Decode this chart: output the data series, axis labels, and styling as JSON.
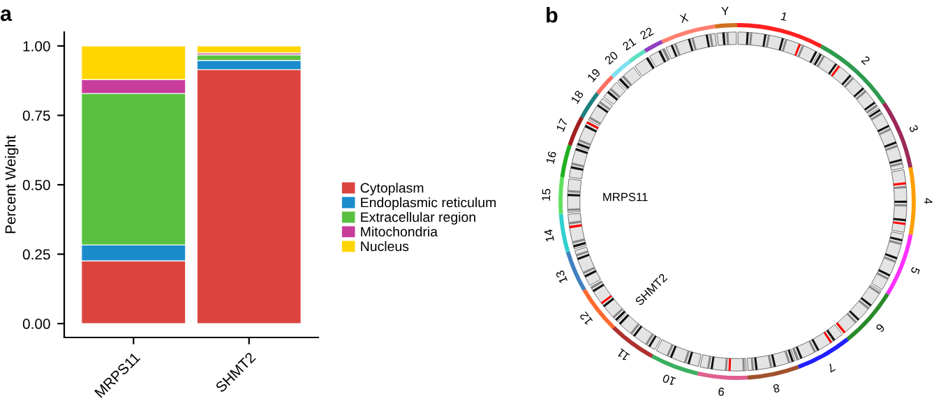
{
  "chart_data": [
    {
      "type": "bar",
      "title": "a",
      "ylabel": "Percent Weight",
      "categories": [
        "MRPS11",
        "SHMT2"
      ],
      "stacked": true,
      "legend": "right",
      "ylim": [
        -0.05,
        1.05
      ],
      "yticks": [
        {
          "value": 0,
          "label": "0.00"
        },
        {
          "value": 0.25,
          "label": "0.25"
        },
        {
          "value": 0.5,
          "label": "0.50"
        },
        {
          "value": 0.75,
          "label": "0.75"
        },
        {
          "value": 1,
          "label": "1.00"
        }
      ],
      "series": [
        {
          "name": "Cytoplasm",
          "color": "#dc4440",
          "values": [
            0.226,
            0.915
          ]
        },
        {
          "name": "Endoplasmic reticulum",
          "color": "#1a8ccc",
          "values": [
            0.057,
            0.033
          ]
        },
        {
          "name": "Extracellular region",
          "color": "#5ac140",
          "values": [
            0.546,
            0.02
          ]
        },
        {
          "name": "Mitochondria",
          "color": "#c83c9c",
          "values": [
            0.05,
            0.007
          ]
        },
        {
          "name": "Nucleus",
          "color": "#ffd500",
          "values": [
            0.121,
            0.025
          ]
        }
      ]
    },
    {
      "type": "other",
      "title": "b",
      "categories": [
        "1",
        "2",
        "3",
        "4",
        "5",
        "6",
        "7",
        "8",
        "9",
        "10",
        "11",
        "12",
        "13",
        "14",
        "15",
        "16",
        "17",
        "18",
        "19",
        "20",
        "21",
        "22",
        "X",
        "Y"
      ],
      "annotations": [
        "MRPS11",
        "SHMT2"
      ]
    }
  ]
}
